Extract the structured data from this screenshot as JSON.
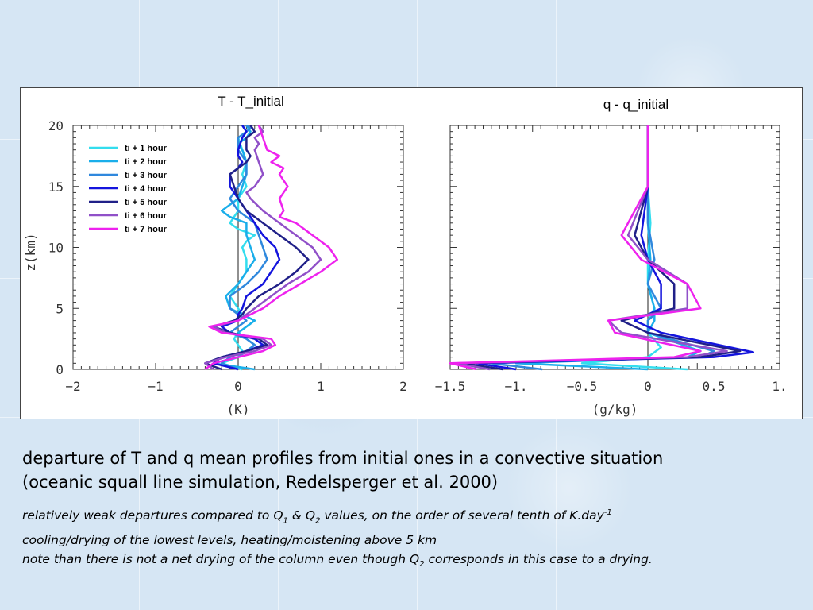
{
  "chart_data": [
    {
      "type": "line",
      "title": "T - T_initial",
      "xlabel": "(K)",
      "ylabel": "z(km)",
      "xlim": [
        -2,
        2
      ],
      "ylim": [
        0,
        20
      ],
      "xticks": [
        "−2",
        "−1",
        "0",
        "1",
        "2"
      ],
      "yticks": [
        "0",
        "5",
        "10",
        "15",
        "20"
      ],
      "legend_position": "top-left",
      "grid": false,
      "series": [
        {
          "name": "ti + 1 hour",
          "color": "#33ddee",
          "x": [
            0.05,
            -0.2,
            0.0,
            0.05,
            0.0,
            -0.05,
            0.0,
            0.1,
            0.2,
            0.05,
            0.0,
            -0.1,
            0.0,
            0.1,
            0.1,
            0.05,
            0.1,
            0.2,
            0.0,
            -0.1,
            0.0,
            0.0,
            0.1,
            0.05,
            0.1,
            0.05,
            0.0,
            0.1,
            0.05
          ],
          "y": [
            0,
            0.5,
            1,
            1.5,
            2,
            2.5,
            3,
            3.5,
            4,
            4.5,
            5,
            6,
            7,
            8,
            9,
            10,
            10.5,
            11,
            11.5,
            12,
            13,
            14,
            15,
            16,
            17,
            18,
            19,
            19.5,
            20
          ]
        },
        {
          "name": "ti + 2 hour",
          "color": "#1aaeea",
          "x": [
            0.2,
            -0.3,
            0.0,
            0.1,
            0.2,
            0.1,
            0.0,
            0.1,
            0.2,
            0.05,
            -0.1,
            -0.15,
            0.0,
            0.1,
            0.2,
            0.15,
            0.1,
            0.1,
            -0.1,
            -0.2,
            0.0,
            0.05,
            0.1,
            0.1,
            0.05,
            0.0,
            0.1,
            0.15,
            0.1
          ],
          "y": [
            0,
            0.5,
            1,
            1.5,
            2,
            2.5,
            3,
            3.5,
            4,
            4.5,
            5,
            6,
            7,
            8,
            9,
            10,
            11,
            12,
            12.5,
            13,
            14,
            15,
            16,
            17,
            18,
            18.5,
            19,
            19.5,
            20
          ]
        },
        {
          "name": "ti + 3 hour",
          "color": "#2f88dd",
          "x": [
            0.0,
            -0.2,
            -0.1,
            0.1,
            0.2,
            0.1,
            -0.1,
            0.0,
            0.1,
            0.0,
            -0.1,
            -0.1,
            0.1,
            0.25,
            0.35,
            0.3,
            0.25,
            0.2,
            0.0,
            -0.1,
            0.0,
            0.05,
            0.1,
            0.1,
            0.0,
            0.0,
            0.1,
            0.15,
            0.1
          ],
          "y": [
            0,
            0.5,
            1,
            1.5,
            2,
            2.5,
            3,
            3.5,
            4,
            4.5,
            5,
            6,
            7,
            8,
            9,
            10,
            11,
            12,
            13,
            14,
            15,
            15.5,
            16,
            17,
            18,
            19,
            19.5,
            19.8,
            20
          ]
        },
        {
          "name": "ti + 4 hour",
          "color": "#1414dd",
          "x": [
            0.0,
            -0.3,
            -0.2,
            0.1,
            0.3,
            0.2,
            -0.1,
            -0.2,
            0.0,
            0.0,
            0.05,
            0.1,
            0.3,
            0.4,
            0.5,
            0.45,
            0.3,
            0.2,
            0.1,
            0.0,
            -0.1,
            -0.1,
            0.0,
            0.05,
            0.0,
            0.0,
            0.05,
            0.1,
            0.05
          ],
          "y": [
            0,
            0.5,
            1,
            1.5,
            2,
            2.5,
            3,
            3.5,
            4,
            4.5,
            5,
            6,
            7,
            8,
            9,
            10,
            11,
            12,
            13,
            14,
            15,
            16,
            16.5,
            17,
            17.5,
            18,
            19,
            19.5,
            20
          ]
        },
        {
          "name": "ti + 5 hour",
          "color": "#202088",
          "x": [
            -0.2,
            -0.4,
            -0.2,
            0.1,
            0.35,
            0.25,
            -0.1,
            -0.3,
            -0.05,
            0.05,
            0.1,
            0.25,
            0.5,
            0.7,
            0.85,
            0.7,
            0.5,
            0.3,
            0.1,
            0.0,
            -0.05,
            -0.1,
            0.0,
            0.1,
            0.15,
            0.1,
            0.1,
            0.2,
            0.15
          ],
          "y": [
            0,
            0.5,
            1,
            1.5,
            2,
            2.5,
            3,
            3.5,
            4,
            4.5,
            5,
            6,
            7,
            8,
            9,
            10,
            11,
            12,
            13,
            14,
            15,
            16,
            16.5,
            17,
            17.5,
            18,
            19,
            19.5,
            20
          ]
        },
        {
          "name": "ti + 6 hour",
          "color": "#9050c8",
          "x": [
            -0.3,
            -0.4,
            -0.15,
            0.2,
            0.4,
            0.3,
            -0.15,
            -0.3,
            0.0,
            0.1,
            0.2,
            0.4,
            0.6,
            0.85,
            1.0,
            0.9,
            0.7,
            0.5,
            0.3,
            0.15,
            0.1,
            0.2,
            0.3,
            0.25,
            0.2,
            0.25,
            0.2,
            0.3,
            0.25
          ],
          "y": [
            0,
            0.5,
            1,
            1.5,
            2,
            2.5,
            3,
            3.5,
            4,
            4.5,
            5,
            6,
            7,
            8,
            9,
            10,
            11,
            12,
            13,
            14,
            14.5,
            15,
            16,
            17,
            18,
            18.5,
            19,
            19.5,
            20
          ]
        },
        {
          "name": "ti + 7 hour",
          "color": "#ee22ee",
          "x": [
            -0.4,
            -0.3,
            0.0,
            0.3,
            0.45,
            0.4,
            -0.2,
            -0.35,
            0.0,
            0.15,
            0.3,
            0.5,
            0.75,
            1.0,
            1.2,
            1.1,
            0.9,
            0.7,
            0.5,
            0.55,
            0.5,
            0.6,
            0.5,
            0.55,
            0.4,
            0.5,
            0.35,
            0.3,
            0.25
          ],
          "y": [
            0,
            0.5,
            1,
            1.5,
            2,
            2.5,
            3,
            3.5,
            4,
            4.5,
            5,
            6,
            7,
            8,
            9,
            10,
            11,
            12,
            12.5,
            13,
            14,
            15,
            16,
            16.5,
            17,
            17.5,
            18,
            19,
            20
          ]
        }
      ]
    },
    {
      "type": "line",
      "title": "q - q_initial",
      "xlabel": "(g/kg)",
      "ylabel": "",
      "xlim": [
        -1.5,
        1.0
      ],
      "ylim": [
        0,
        20
      ],
      "xticks": [
        "−1.5",
        "−1.",
        "−0.5",
        "0",
        "0.5",
        "1."
      ],
      "grid": false,
      "series": [
        {
          "name": "ti + 1 hour",
          "color": "#33ddee",
          "x": [
            0.3,
            -0.5,
            0.0,
            0.1,
            0.0,
            0.0,
            0.05,
            0.0,
            0.0,
            0.02,
            0.0,
            0.0
          ],
          "y": [
            0,
            0.5,
            1,
            1.8,
            3,
            4,
            5,
            7,
            9,
            12,
            15,
            20
          ]
        },
        {
          "name": "ti + 2 hour",
          "color": "#1aaeea",
          "x": [
            0.0,
            -1.0,
            0.3,
            0.4,
            0.0,
            0.05,
            0.05,
            0.0,
            0.02,
            0.0,
            0.0,
            0.0
          ],
          "y": [
            0,
            0.5,
            1,
            1.5,
            3,
            4,
            5,
            7,
            9,
            12,
            15,
            20
          ]
        },
        {
          "name": "ti + 3 hour",
          "color": "#2f88dd",
          "x": [
            -0.8,
            -1.2,
            0.4,
            0.5,
            0.0,
            0.0,
            0.1,
            0.0,
            0.05,
            0.0,
            0.0,
            0.0
          ],
          "y": [
            0,
            0.5,
            1,
            1.5,
            3,
            4,
            5,
            7,
            9,
            12,
            15,
            20
          ]
        },
        {
          "name": "ti + 4 hour",
          "color": "#1414dd",
          "x": [
            -1.0,
            -1.3,
            0.5,
            0.8,
            0.1,
            -0.1,
            0.1,
            0.1,
            0.0,
            -0.05,
            0.0,
            0.0
          ],
          "y": [
            0,
            0.5,
            1,
            1.4,
            3,
            4,
            5,
            7,
            9,
            11,
            15,
            20
          ]
        },
        {
          "name": "ti + 5 hour",
          "color": "#202088",
          "x": [
            -1.1,
            -1.4,
            0.4,
            0.7,
            0.0,
            -0.2,
            0.2,
            0.2,
            0.0,
            -0.1,
            0.0,
            0.0
          ],
          "y": [
            0,
            0.5,
            1,
            1.5,
            3,
            4,
            5,
            7,
            9,
            11,
            15,
            20
          ]
        },
        {
          "name": "ti + 6 hour",
          "color": "#9050c8",
          "x": [
            -1.2,
            -1.45,
            0.3,
            0.6,
            -0.2,
            -0.3,
            0.3,
            0.3,
            0.0,
            -0.15,
            0.0,
            0.0
          ],
          "y": [
            0,
            0.5,
            1,
            1.5,
            3,
            4,
            5,
            7,
            9,
            11,
            15,
            20
          ]
        },
        {
          "name": "ti + 7 hour",
          "color": "#ee22ee",
          "x": [
            -1.3,
            -1.5,
            0.2,
            0.4,
            -0.25,
            -0.3,
            0.4,
            0.3,
            -0.05,
            -0.2,
            0.0,
            0.0
          ],
          "y": [
            0,
            0.5,
            1,
            1.5,
            3,
            4,
            5,
            7,
            9,
            11,
            15,
            20
          ]
        }
      ]
    }
  ],
  "caption": {
    "line1": "departure of T and q mean profiles from initial ones in a convective situation",
    "line2": "(oceanic squall line simulation, Redelsperger et al. 2000)",
    "note1_a": "relatively weak departures compared to Q",
    "note1_sub1": "1",
    "note1_b": " & Q",
    "note1_sub2": "2",
    "note1_c": " values, on the order of several tenth of K.day",
    "note1_sup": "-1",
    "note2": "cooling/drying of the lowest levels, heating/moistening above 5 km",
    "note3_a": "note than there is not a net drying of the column even though Q",
    "note3_sub": "2",
    "note3_b": " corresponds in this case to a drying."
  }
}
